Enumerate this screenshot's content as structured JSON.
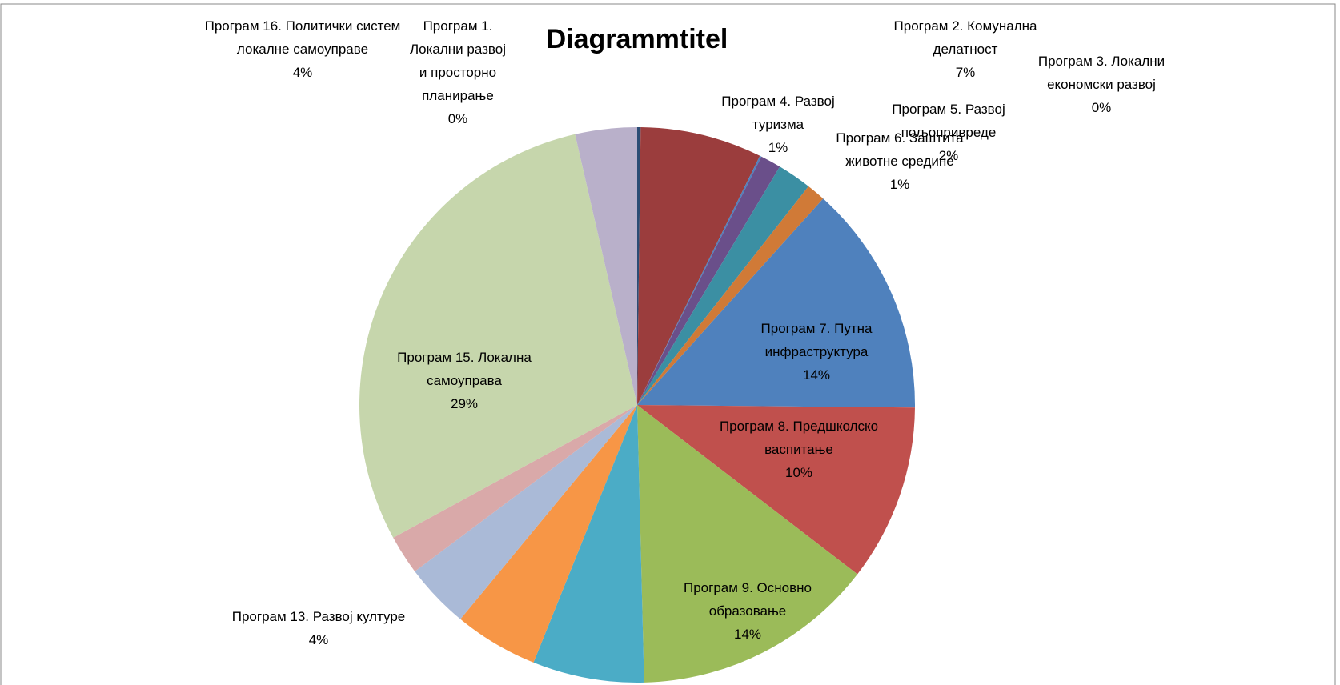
{
  "chart_data": {
    "type": "pie",
    "title": "Diagrammtitel",
    "categories": [
      "Програм 1.  Локални развој и просторно планирање",
      "Програм 2.  Комунална делатност",
      "Програм 3.  Локални економски развој",
      "Програм 4.  Развој туризма",
      "Програм 5.  Развој пољопривреде",
      "Програм 6.  Заштита животне средине",
      "Програм 7.  Путна инфраструктура",
      "Програм 8.  Предшколско васпитање",
      "Програм 9.  Основно образовање",
      null,
      null,
      "Програм 13.  Развој културе",
      null,
      "Програм 15.  Локална самоуправа",
      "Програм 16. Политички систем локалне самоуправе"
    ],
    "values": [
      0.2,
      7.1,
      0.1,
      1.2,
      2.0,
      1.1,
      13.5,
      10.3,
      14.2,
      6.5,
      4.9,
      3.8,
      2.3,
      29.4,
      3.6
    ],
    "value_labels": [
      "0%",
      "7%",
      "0%",
      "1%",
      "2%",
      "1%",
      "14%",
      "10%",
      "14%",
      null,
      null,
      "4%",
      null,
      "29%",
      "4%"
    ],
    "colors": [
      "#2c4d75",
      "#9b3d3d",
      "#4f81bd",
      "#6a4f8a",
      "#3b8fa3",
      "#d07a37",
      "#4f81bd",
      "#c0504d",
      "#9bbb59",
      "#4bacc6",
      "#f79646",
      "#aabad7",
      "#d9a9a9",
      "#c6d6ac",
      "#b9b0ca"
    ]
  }
}
